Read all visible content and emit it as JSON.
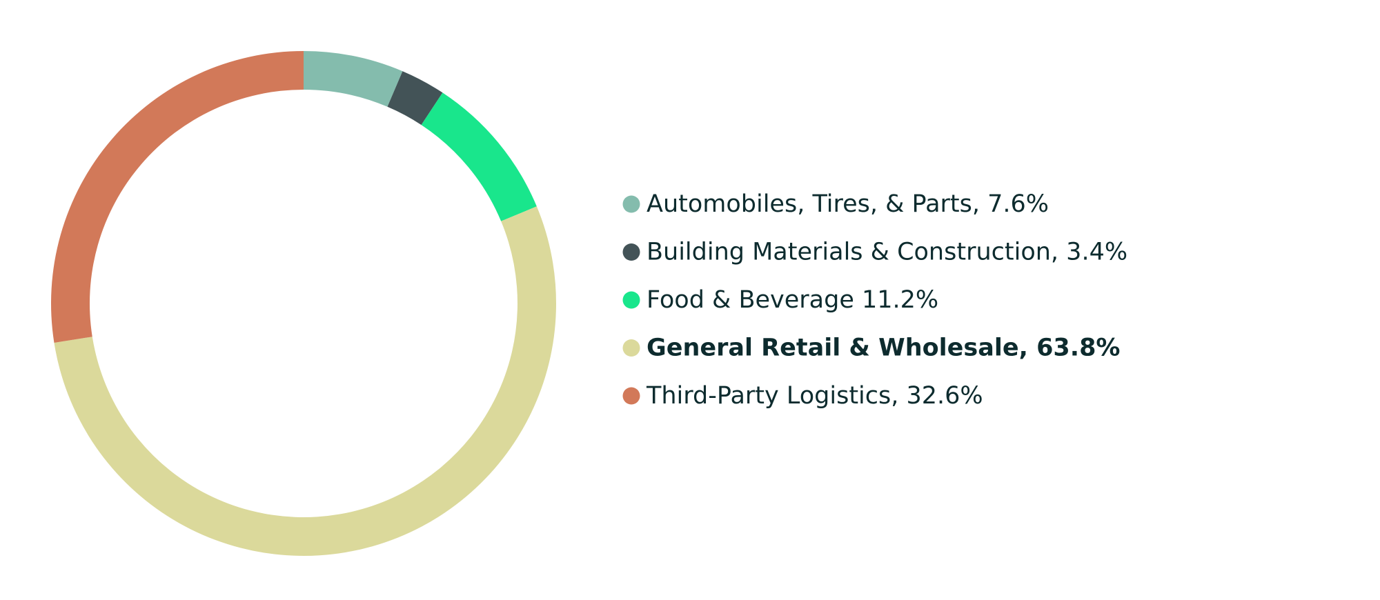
{
  "chart_data": {
    "type": "donut",
    "categories": [
      "Automobiles, Tires, & Parts, 7.6%",
      "Building Materials & Construction, 3.4%",
      "Food & Beverage 11.2%",
      "General Retail & Wholesale, 63.8%",
      "Third-Party Logistics, 32.6%"
    ],
    "values": [
      7.6,
      3.4,
      11.2,
      63.8,
      32.6
    ],
    "colors": [
      "#84bcad",
      "#435357",
      "#19e68c",
      "#dbd99b",
      "#d27959"
    ],
    "bold": [
      false,
      false,
      false,
      true,
      false
    ],
    "legend": "right"
  }
}
